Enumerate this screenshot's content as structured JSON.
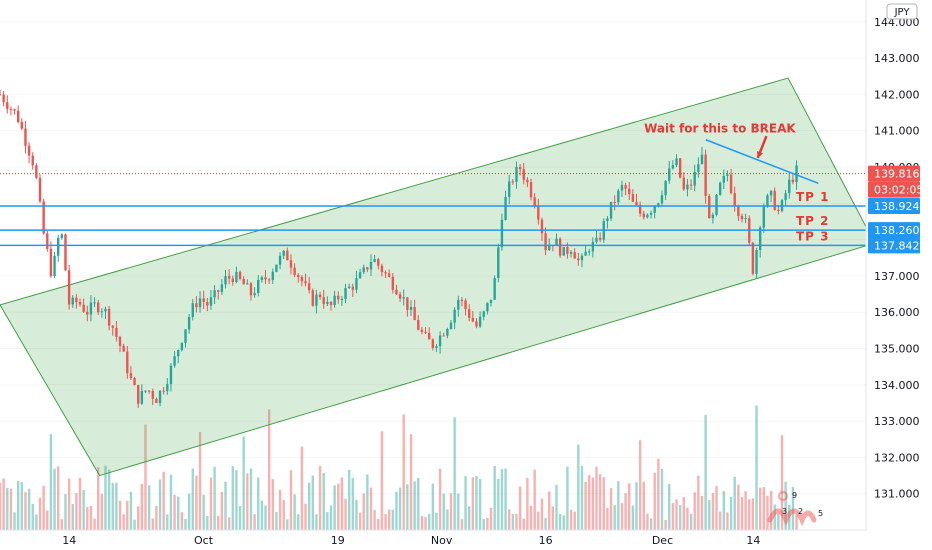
{
  "chart_data": {
    "type": "candlestick",
    "currency_badge": "JPY",
    "y_range": [
      130.0,
      144.6
    ],
    "y_ticks": [
      131,
      132,
      133,
      134,
      135,
      136,
      137,
      138,
      139,
      140,
      141,
      142,
      143,
      144
    ],
    "y_tick_labels": [
      "131.000",
      "132.000",
      "133.000",
      "134.000",
      "135.000",
      "136.000",
      "137.000",
      "",
      "",
      "140.000",
      "141.000",
      "142.000",
      "143.000",
      "144.000"
    ],
    "x_range": [
      0,
      100
    ],
    "x_ticks": [
      {
        "label": "14",
        "x": 8
      },
      {
        "label": "Oct",
        "x": 23.5
      },
      {
        "label": "19",
        "x": 39
      },
      {
        "label": "Nov",
        "x": 51
      },
      {
        "label": "16",
        "x": 63
      },
      {
        "label": "Dec",
        "x": 76.5
      },
      {
        "label": "14",
        "x": 87
      }
    ],
    "last_price": 139.816,
    "countdown": "03:02:05",
    "levels": [
      {
        "name": "TP 1",
        "value": 138.924
      },
      {
        "name": "TP 2",
        "value": 138.26
      },
      {
        "name": "TP 3",
        "value": 137.842
      }
    ],
    "channel": {
      "upper": [
        [
          0,
          136.2
        ],
        [
          91,
          142.45
        ]
      ],
      "lower": [
        [
          11.5,
          131.5
        ],
        [
          101,
          137.9
        ]
      ]
    },
    "trendline": [
      [
        81.5,
        140.75
      ],
      [
        94.5,
        139.55
      ]
    ],
    "annotation": {
      "text": "Wait for this to BREAK",
      "at": [
        79,
        140.95
      ]
    },
    "arrow": {
      "from": [
        88.5,
        140.85
      ],
      "to": [
        87.5,
        140.25
      ]
    },
    "price_path": [
      [
        0,
        142.0
      ],
      [
        2,
        141.4
      ],
      [
        4,
        140.0
      ],
      [
        5,
        138.2
      ],
      [
        6,
        137.0
      ],
      [
        7,
        138.4
      ],
      [
        8,
        136.2
      ],
      [
        9,
        136.3
      ],
      [
        10,
        136.0
      ],
      [
        11,
        136.2
      ],
      [
        12,
        136.1
      ],
      [
        13,
        135.6
      ],
      [
        14,
        135.0
      ],
      [
        15,
        134.2
      ],
      [
        16,
        133.6
      ],
      [
        17,
        133.9
      ],
      [
        18,
        133.6
      ],
      [
        19,
        134.0
      ],
      [
        20,
        134.6
      ],
      [
        21,
        135.3
      ],
      [
        22,
        136.0
      ],
      [
        23,
        136.4
      ],
      [
        24,
        136.2
      ],
      [
        25,
        136.5
      ],
      [
        26,
        136.9
      ],
      [
        27,
        137.0
      ],
      [
        28,
        136.8
      ],
      [
        29,
        136.5
      ],
      [
        30,
        136.8
      ],
      [
        31,
        137.0
      ],
      [
        32,
        137.4
      ],
      [
        33,
        137.6
      ],
      [
        34,
        137.2
      ],
      [
        35,
        136.8
      ],
      [
        36,
        136.3
      ],
      [
        37,
        136.5
      ],
      [
        38,
        136.1
      ],
      [
        39,
        136.4
      ],
      [
        40,
        136.6
      ],
      [
        41,
        136.8
      ],
      [
        42,
        137.1
      ],
      [
        43,
        137.5
      ],
      [
        44,
        137.2
      ],
      [
        45,
        136.9
      ],
      [
        46,
        136.6
      ],
      [
        47,
        136.2
      ],
      [
        48,
        135.7
      ],
      [
        49,
        135.3
      ],
      [
        50,
        135.1
      ],
      [
        51,
        135.4
      ],
      [
        52,
        135.8
      ],
      [
        53,
        136.4
      ],
      [
        54,
        136.0
      ],
      [
        55,
        135.6
      ],
      [
        56,
        136.0
      ],
      [
        57,
        136.6
      ],
      [
        58,
        138.8
      ],
      [
        59,
        139.6
      ],
      [
        60,
        140.0
      ],
      [
        61,
        139.5
      ],
      [
        62,
        138.9
      ],
      [
        63,
        137.8
      ],
      [
        64,
        138.0
      ],
      [
        65,
        137.6
      ],
      [
        66,
        137.8
      ],
      [
        67,
        137.3
      ],
      [
        68,
        137.8
      ],
      [
        69,
        137.9
      ],
      [
        70,
        138.6
      ],
      [
        71,
        139.1
      ],
      [
        72,
        139.5
      ],
      [
        73,
        139.0
      ],
      [
        74,
        138.7
      ],
      [
        75,
        138.8
      ],
      [
        76,
        139.1
      ],
      [
        77,
        139.7
      ],
      [
        78,
        140.2
      ],
      [
        79,
        139.3
      ],
      [
        80,
        139.6
      ],
      [
        81,
        140.4
      ],
      [
        82,
        138.2
      ],
      [
        83,
        139.4
      ],
      [
        84,
        139.8
      ],
      [
        85,
        138.9
      ],
      [
        86,
        138.6
      ],
      [
        87,
        137.1
      ],
      [
        88,
        138.9
      ],
      [
        89,
        139.2
      ],
      [
        90,
        138.7
      ],
      [
        91,
        139.5
      ],
      [
        92,
        139.9
      ]
    ],
    "volume_note": "volume histogram along bottom",
    "watermark_marks": [
      "9",
      "3",
      "2",
      "5"
    ]
  }
}
